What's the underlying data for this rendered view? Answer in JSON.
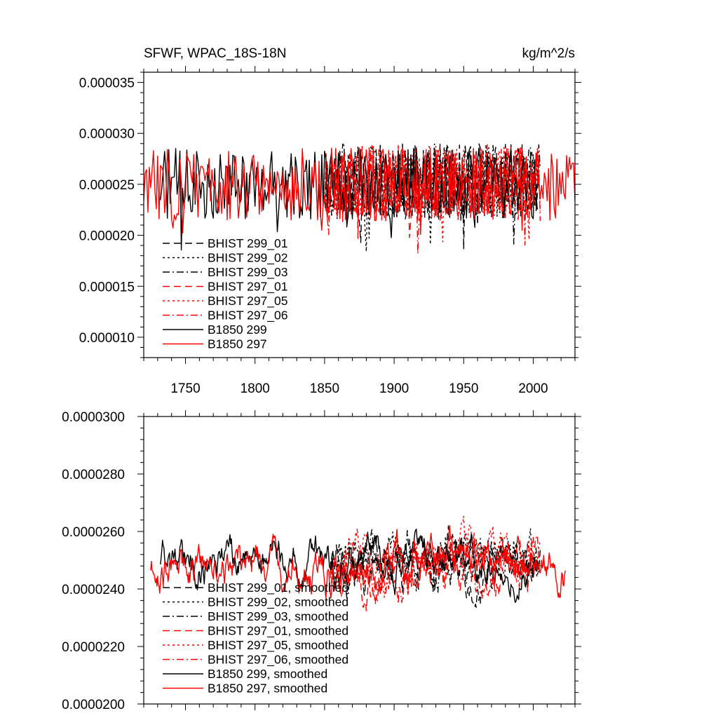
{
  "colors": {
    "black": "#000000",
    "red": "#ff0000",
    "background": "#ffffff"
  },
  "chart_data": [
    {
      "type": "line",
      "title": "SFWF, WPAC_18S-18N",
      "units_label": "kg/m^2/s",
      "xlim": [
        1720,
        2030
      ],
      "ylim": [
        8e-06,
        3.6e-05
      ],
      "x_ticks": [
        1750,
        1800,
        1850,
        1900,
        1950,
        2000
      ],
      "x_tick_labels": [
        "1750",
        "1800",
        "1850",
        "1900",
        "1950",
        "2000"
      ],
      "y_ticks": [
        1e-05,
        1.5e-05,
        2e-05,
        2.5e-05,
        3e-05,
        3.5e-05
      ],
      "y_tick_labels": [
        "0.000010",
        "0.000015",
        "0.000020",
        "0.000025",
        "0.000030",
        "0.000035"
      ],
      "legend_position": "lower-left",
      "series": [
        {
          "name": "BHIST 299_01",
          "color": "#000000",
          "dash": "long-dash",
          "x_start": 1850,
          "x_end": 2005,
          "mean": 2.53e-05,
          "amp": 3.7e-06,
          "seed": 11
        },
        {
          "name": "BHIST 299_02",
          "color": "#000000",
          "dash": "dot",
          "x_start": 1850,
          "x_end": 2005,
          "mean": 2.54e-05,
          "amp": 3.6e-06,
          "seed": 23
        },
        {
          "name": "BHIST 299_03",
          "color": "#000000",
          "dash": "dash-dot",
          "x_start": 1850,
          "x_end": 2005,
          "mean": 2.52e-05,
          "amp": 3.8e-06,
          "seed": 37
        },
        {
          "name": "BHIST 297_01",
          "color": "#ff0000",
          "dash": "long-dash",
          "x_start": 1850,
          "x_end": 2005,
          "mean": 2.51e-05,
          "amp": 3.7e-06,
          "seed": 41
        },
        {
          "name": "BHIST 297_05",
          "color": "#ff0000",
          "dash": "dot",
          "x_start": 1850,
          "x_end": 2005,
          "mean": 2.53e-05,
          "amp": 3.6e-06,
          "seed": 53
        },
        {
          "name": "BHIST 297_06",
          "color": "#ff0000",
          "dash": "dash-dot",
          "x_start": 1850,
          "x_end": 2005,
          "mean": 2.51e-05,
          "amp": 3.8e-06,
          "seed": 67
        },
        {
          "name": "B1850 299",
          "color": "#000000",
          "dash": "solid",
          "x_start": 1732,
          "x_end": 2003,
          "mean": 2.51e-05,
          "amp": 3.5e-06,
          "seed": 71
        },
        {
          "name": "B1850 297",
          "color": "#ff0000",
          "dash": "solid",
          "x_start": 1720,
          "x_end": 2030,
          "mean": 2.5e-05,
          "amp": 3.6e-06,
          "seed": 83
        }
      ]
    },
    {
      "type": "line",
      "title": "",
      "xlim": [
        1720,
        2030
      ],
      "ylim": [
        2e-05,
        3e-05
      ],
      "x_ticks": [
        1750,
        1800,
        1850,
        1900,
        1950,
        2000
      ],
      "x_tick_labels": [],
      "y_ticks": [
        2e-05,
        2.2e-05,
        2.4e-05,
        2.6e-05,
        2.8e-05,
        3e-05
      ],
      "y_tick_labels": [
        "0.0000200",
        "0.0000220",
        "0.0000240",
        "0.0000260",
        "0.0000280",
        "0.0000300"
      ],
      "legend_position": "lower-left",
      "series": [
        {
          "name": "BHIST 299_01, smoothed",
          "color": "#000000",
          "dash": "long-dash",
          "x_start": 1854,
          "x_end": 2005,
          "mean": 2.5e-05,
          "amp": 1.3e-06,
          "seed": 111
        },
        {
          "name": "BHIST 299_02, smoothed",
          "color": "#000000",
          "dash": "dot",
          "x_start": 1854,
          "x_end": 2005,
          "mean": 2.51e-05,
          "amp": 1.3e-06,
          "seed": 123
        },
        {
          "name": "BHIST 299_03, smoothed",
          "color": "#000000",
          "dash": "dash-dot",
          "x_start": 1854,
          "x_end": 2005,
          "mean": 2.49e-05,
          "amp": 1.3e-06,
          "seed": 137
        },
        {
          "name": "BHIST 297_01, smoothed",
          "color": "#ff0000",
          "dash": "long-dash",
          "x_start": 1854,
          "x_end": 2000,
          "mean": 2.48e-05,
          "amp": 1.4e-06,
          "seed": 141
        },
        {
          "name": "BHIST 297_05, smoothed",
          "color": "#ff0000",
          "dash": "dot",
          "x_start": 1854,
          "x_end": 2005,
          "mean": 2.5e-05,
          "amp": 1.3e-06,
          "seed": 153
        },
        {
          "name": "BHIST 297_06, smoothed",
          "color": "#ff0000",
          "dash": "dash-dot",
          "x_start": 1854,
          "x_end": 2005,
          "mean": 2.49e-05,
          "amp": 1.3e-06,
          "seed": 167
        },
        {
          "name": "B1850 299, smoothed",
          "color": "#000000",
          "dash": "solid",
          "x_start": 1732,
          "x_end": 2003,
          "mean": 2.5e-05,
          "amp": 1.2e-06,
          "seed": 171
        },
        {
          "name": "B1850 297, smoothed",
          "color": "#ff0000",
          "dash": "solid",
          "x_start": 1725,
          "x_end": 2023,
          "mean": 2.48e-05,
          "amp": 1.3e-06,
          "seed": 183
        }
      ]
    }
  ]
}
